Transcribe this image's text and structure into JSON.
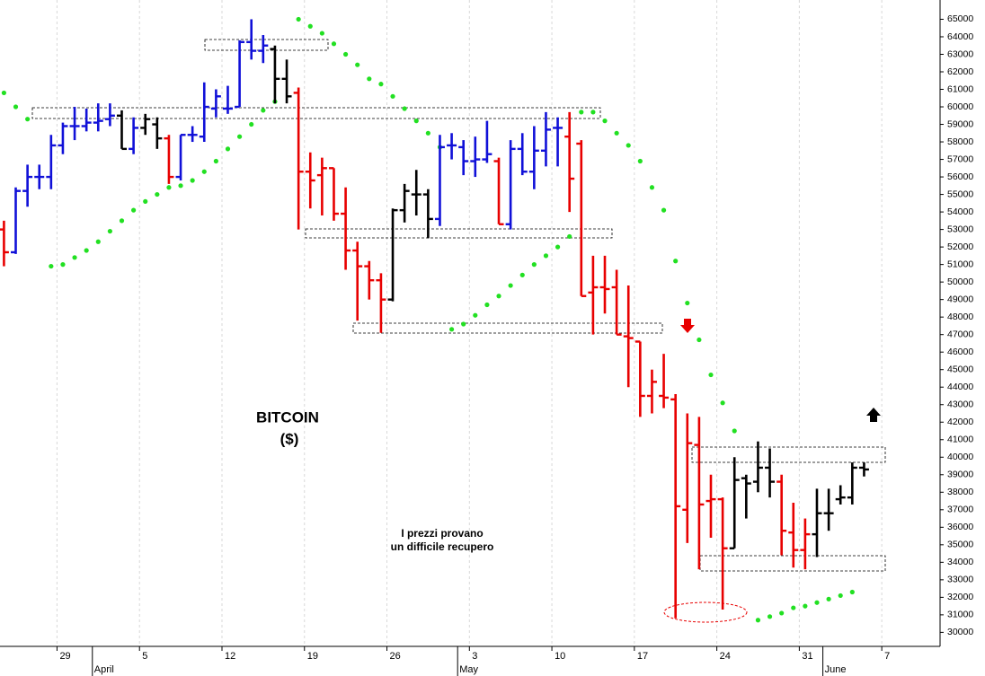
{
  "chart_data": {
    "type": "ohlc",
    "title": "BITCOIN",
    "subtitle": "($)",
    "annotations": [
      "I prezzi provano",
      "un difficile recupero"
    ],
    "categories": [
      null,
      null,
      null,
      null,
      null,
      "29",
      null,
      null,
      null,
      null,
      null,
      null,
      "5",
      null,
      null,
      null,
      null,
      null,
      null,
      "12",
      null,
      null,
      null,
      null,
      null,
      null,
      "19",
      null,
      null,
      null,
      null,
      null,
      null,
      "26",
      null,
      null,
      null,
      null,
      null,
      null,
      "3",
      null,
      null,
      null,
      null,
      null,
      null,
      "10",
      null,
      null,
      null,
      null,
      null,
      null,
      "17",
      null,
      null,
      null,
      null,
      null,
      null,
      "24",
      null,
      null,
      null,
      null,
      null,
      null,
      "31",
      null,
      null,
      null,
      null,
      null,
      null,
      "7",
      null,
      null,
      null
    ],
    "months": [
      "April",
      "May",
      "June"
    ],
    "open": [
      53000,
      51700,
      55200,
      56000,
      56000,
      57800,
      58900,
      58900,
      59100,
      59300,
      59500,
      57600,
      58800,
      59000,
      58200,
      56000,
      58400,
      58300,
      59900,
      59900,
      60000,
      63700,
      63200,
      63300,
      61600,
      60800,
      56300,
      56100,
      56500,
      53900,
      51800,
      50900,
      50100,
      49000,
      54100,
      55000,
      55000,
      53600,
      57800,
      57700,
      56900,
      57000,
      56900,
      53300,
      57600,
      56300,
      57500,
      58800,
      58300,
      57900,
      49400,
      49700,
      49700,
      46900,
      46600,
      43500,
      43500,
      43300,
      37000,
      40700,
      37500,
      37600,
      34800,
      38800,
      38600,
      39400,
      38600,
      35700,
      34700,
      35600,
      36800,
      37600,
      37700,
      39400,
      null,
      null,
      null,
      null,
      null
    ],
    "high": [
      53500,
      55400,
      56700,
      56700,
      58400,
      59100,
      60000,
      59900,
      60200,
      60200,
      59800,
      59400,
      59600,
      59400,
      58400,
      58400,
      58900,
      61400,
      61000,
      61200,
      63800,
      65000,
      64100,
      63500,
      62700,
      61100,
      57400,
      57100,
      56500,
      55400,
      52300,
      51200,
      50500,
      54200,
      55600,
      56400,
      55300,
      58400,
      58500,
      58100,
      58300,
      59200,
      57100,
      58100,
      58500,
      58900,
      59700,
      59400,
      59700,
      58100,
      51500,
      51500,
      50700,
      49800,
      46600,
      45000,
      45900,
      43600,
      42500,
      42300,
      39000,
      37700,
      40000,
      39000,
      40900,
      40500,
      39000,
      37400,
      36500,
      38200,
      38200,
      38400,
      39700,
      39700,
      null,
      null,
      null,
      null,
      null
    ],
    "low": [
      50900,
      51600,
      54300,
      55300,
      55300,
      57300,
      58100,
      58600,
      58600,
      58900,
      57600,
      57300,
      58400,
      57600,
      55600,
      55800,
      58000,
      58000,
      59400,
      59600,
      60000,
      62700,
      62500,
      60200,
      60200,
      53000,
      54200,
      53800,
      53500,
      50700,
      47800,
      49000,
      47100,
      48900,
      53400,
      53800,
      52500,
      53200,
      57000,
      56100,
      56000,
      56800,
      53300,
      53000,
      56100,
      55300,
      56600,
      56600,
      54000,
      49200,
      47000,
      48200,
      47000,
      44000,
      42300,
      42500,
      42800,
      30800,
      35100,
      33600,
      35400,
      31300,
      34800,
      36500,
      38000,
      37700,
      34400,
      33700,
      33600,
      34300,
      35800,
      37300,
      37300,
      38900,
      null,
      null,
      null,
      null,
      null
    ],
    "close": [
      51700,
      55200,
      56000,
      56000,
      57800,
      58900,
      58900,
      59100,
      59200,
      59500,
      57600,
      58800,
      59300,
      58200,
      56000,
      58400,
      58400,
      60000,
      60600,
      59900,
      63700,
      63200,
      63500,
      61600,
      60600,
      56300,
      55800,
      56500,
      53900,
      51800,
      50900,
      50100,
      49000,
      54100,
      55200,
      55000,
      53600,
      57700,
      57800,
      56900,
      57000,
      57300,
      53300,
      57600,
      56300,
      57500,
      58700,
      58800,
      55900,
      49200,
      49700,
      49600,
      47000,
      46800,
      43500,
      44300,
      43400,
      37200,
      40800,
      37300,
      37600,
      34800,
      38700,
      38500,
      39400,
      38600,
      35800,
      34700,
      35600,
      36800,
      36800,
      37700,
      39400,
      39300,
      null,
      null,
      null,
      null,
      null
    ],
    "bar_colors": [
      "#e80000",
      "#1010d8",
      "#1010d8",
      "#1010d8",
      "#1010d8",
      "#1010d8",
      "#1010d8",
      "#1010d8",
      "#1010d8",
      "#1010d8",
      "#000000",
      "#1010d8",
      "#000000",
      "#000000",
      "#e80000",
      "#1010d8",
      "#1010d8",
      "#1010d8",
      "#1010d8",
      "#1010d8",
      "#1010d8",
      "#1010d8",
      "#1010d8",
      "#000000",
      "#000000",
      "#e80000",
      "#e80000",
      "#e80000",
      "#e80000",
      "#e80000",
      "#e80000",
      "#e80000",
      "#e80000",
      "#000000",
      "#000000",
      "#000000",
      "#000000",
      "#1010d8",
      "#1010d8",
      "#1010d8",
      "#1010d8",
      "#1010d8",
      "#e80000",
      "#1010d8",
      "#1010d8",
      "#1010d8",
      "#1010d8",
      "#1010d8",
      "#e80000",
      "#e80000",
      "#e80000",
      "#e80000",
      "#e80000",
      "#e80000",
      "#e80000",
      "#e80000",
      "#e80000",
      "#e80000",
      "#e80000",
      "#e80000",
      "#e80000",
      "#e80000",
      "#000000",
      "#000000",
      "#000000",
      "#000000",
      "#e80000",
      "#e80000",
      "#e80000",
      "#000000",
      "#000000",
      "#000000",
      "#000000",
      "#000000",
      null,
      null,
      null,
      null,
      null
    ],
    "sar": [
      60800,
      60000,
      59300,
      null,
      50900,
      51000,
      51400,
      51800,
      52300,
      52900,
      53500,
      54100,
      54600,
      55000,
      55400,
      55500,
      55800,
      56300,
      56900,
      57600,
      58300,
      59000,
      59800,
      60300,
      null,
      65000,
      64600,
      64200,
      63600,
      63000,
      62400,
      61600,
      61300,
      60600,
      59900,
      59200,
      58500,
      57700,
      47300,
      47600,
      48100,
      48700,
      49200,
      49800,
      50400,
      51000,
      51500,
      52000,
      52600,
      59700,
      59700,
      59200,
      58500,
      57800,
      56900,
      55400,
      54100,
      51200,
      48800,
      46700,
      44700,
      43100,
      41500,
      null,
      30700,
      30900,
      31100,
      31400,
      31500,
      31700,
      31900,
      32100,
      32300,
      null,
      null,
      null,
      null,
      null,
      null
    ],
    "sar_color": "#22e022",
    "ylim": [
      29200,
      66100
    ],
    "yticks": [
      30000,
      31000,
      32000,
      33000,
      34000,
      35000,
      36000,
      37000,
      38000,
      39000,
      40000,
      41000,
      42000,
      43000,
      44000,
      45000,
      46000,
      47000,
      48000,
      49000,
      50000,
      51000,
      52000,
      53000,
      54000,
      55000,
      56000,
      57000,
      58000,
      59000,
      60000,
      61000,
      62000,
      63000,
      64000,
      65000
    ],
    "xgrid": true
  }
}
